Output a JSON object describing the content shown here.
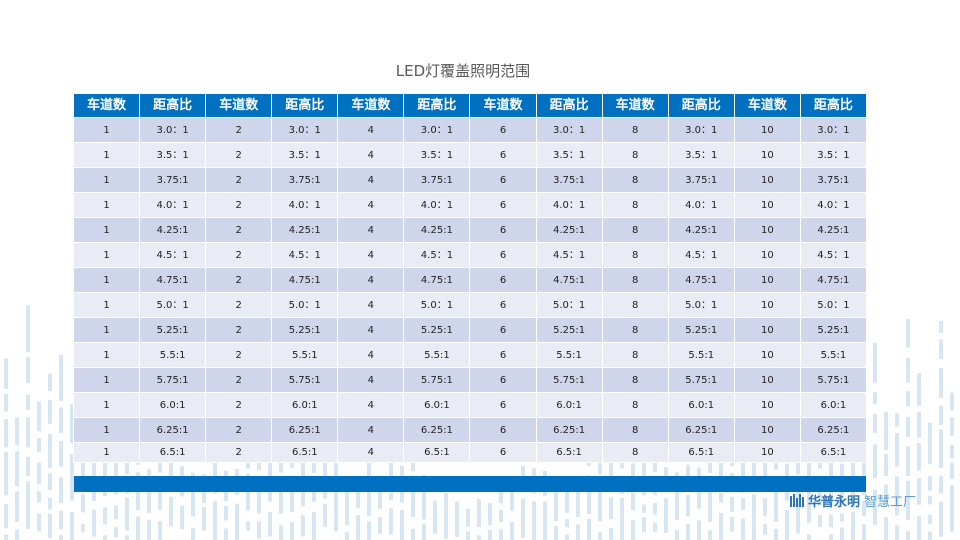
{
  "title": "LED灯覆盖照明范围",
  "headers": [
    "车道数",
    "距高比",
    "车道数",
    "距高比",
    "车道数",
    "距高比",
    "车道数",
    "距高比",
    "车道数",
    "距高比",
    "车道数",
    "距高比"
  ],
  "lanes": [
    "1",
    "2",
    "4",
    "6",
    "8",
    "10"
  ],
  "ratios": [
    "3.0：1",
    "3.5：1",
    "3.75:1",
    "4.0：1",
    "4.25:1",
    "4.5：1",
    "4.75:1",
    "5.0：1",
    "5.25:1",
    "5.5:1",
    "5.75:1",
    "6.0:1",
    "6.25:1",
    "6.5:1"
  ],
  "logo": {
    "brand": "华普永明",
    "suffix": "智慧工厂"
  },
  "colors": {
    "header": "#0070c0",
    "row_odd": "#cfd5ea",
    "row_even": "#e9ebf5",
    "deco": "#d6e6f2"
  }
}
